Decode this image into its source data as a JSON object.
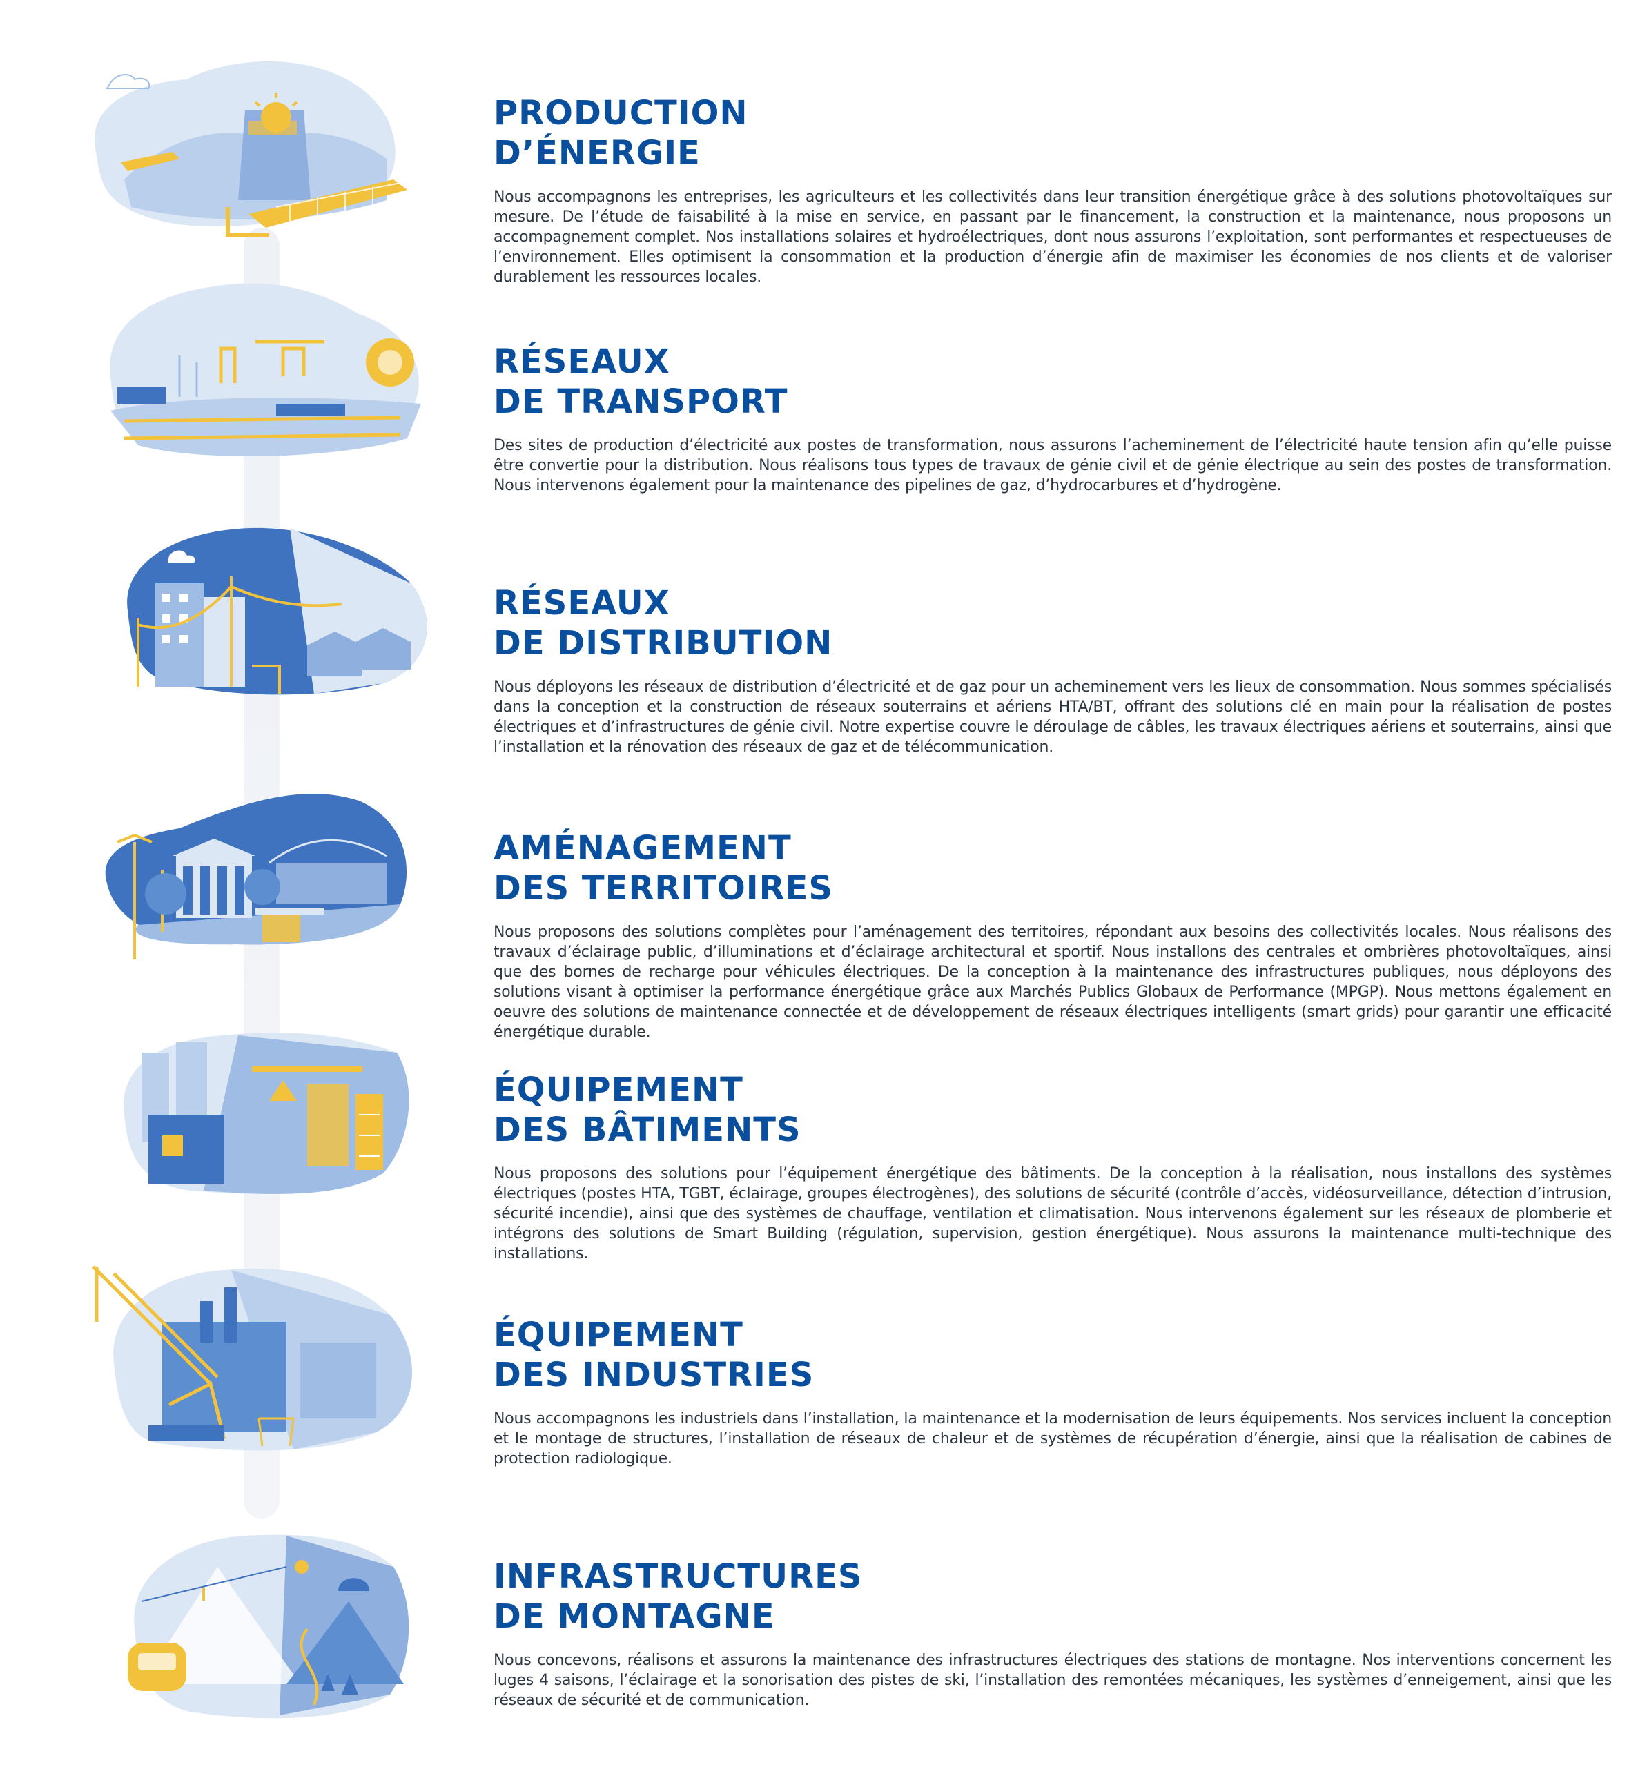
{
  "sections": [
    {
      "title_line1": "PRODUCTION",
      "title_line2": "D’ÉNERGIE",
      "description": "Nous accompagnons les entreprises, les agriculteurs et les collectivités dans leur transition énergétique grâce à des solutions photovoltaïques sur mesure. De l’étude de faisabilité à la mise en service, en passant par le financement, la construction et la maintenance, nous proposons un accompagnement complet. Nos installations solaires et hydroélectriques, dont nous assurons l’exploitation, sont performantes et respectueuses de l’environnement. Elles optimisent la consommation et la production d’énergie afin de maximiser les économies de nos clients et de valoriser durablement les ressources locales.",
      "icon": "solar-hydro-illustration"
    },
    {
      "title_line1": "RÉSEAUX",
      "title_line2": "DE TRANSPORT",
      "description": "Des sites de production d’électricité aux postes de transformation, nous assurons l’acheminement de l’électricité haute tension afin qu’elle puisse être convertie pour la distribution. Nous réalisons tous types de travaux de génie civil et de génie électrique au sein des postes de transformation. Nous intervenons également pour la maintenance des pipelines de gaz, d’hydrocarbures et d’hydrogène.",
      "icon": "transmission-network-illustration"
    },
    {
      "title_line1": "RÉSEAUX",
      "title_line2": "DE DISTRIBUTION",
      "description": "Nous déployons les réseaux de distribution d’électricité et de gaz pour un acheminement vers les lieux de consommation. Nous sommes spécialisés dans la conception et la construction de réseaux souterrains et aériens HTA/BT, offrant des solutions clé en main pour la réalisation de postes électriques et d’infrastructures de génie civil. Notre expertise couvre le déroulage de câbles, les travaux électriques aériens et souterrains, ainsi que l’installation et la rénovation des réseaux de gaz et de télécommunication.",
      "icon": "distribution-network-illustration"
    },
    {
      "title_line1": "AMÉNAGEMENT",
      "title_line2": "DES TERRITOIRES",
      "description": "Nous proposons des solutions complètes pour l’aménagement des territoires, répondant aux besoins des collectivités locales. Nous réalisons des travaux d’éclairage public, d’illuminations et d’éclairage architectural et sportif. Nous installons des centrales et ombrières photovoltaïques, ainsi que des bornes de recharge pour véhicules électriques. De la conception à la maintenance des infrastructures publiques, nous déployons des solutions visant à optimiser la performance énergétique grâce aux Marchés Publics Globaux de Performance (MPGP). Nous mettons également en oeuvre des solutions de maintenance connectée et de développement de réseaux électriques intelligents (smart grids) pour garantir une efficacité énergétique durable.",
      "icon": "city-planning-illustration"
    },
    {
      "title_line1": "ÉQUIPEMENT",
      "title_line2": "DES BÂTIMENTS",
      "description": "Nous proposons des solutions pour l’équipement énergétique des bâtiments. De la conception à la réalisation, nous installons des systèmes électriques (postes HTA, TGBT, éclairage, groupes électrogènes), des solutions de sécurité (contrôle d’accès, vidéosurveillance, détection d’intrusion, sécurité incendie), ainsi que des systèmes de chauffage, ventilation et climatisation. Nous intervenons également sur les réseaux de plomberie et intégrons des solutions de Smart Building (régulation, supervision, gestion énergétique). Nous assurons la maintenance multi-technique des installations.",
      "icon": "building-equipment-illustration"
    },
    {
      "title_line1": "ÉQUIPEMENT",
      "title_line2": "DES INDUSTRIES",
      "description": "Nous accompagnons les industriels dans l’installation, la maintenance et la modernisation de leurs équipements. Nos services incluent la conception et le montage de structures, l’installation de réseaux de chaleur et de systèmes de récupération d’énergie, ainsi que la réalisation de cabines de protection radiologique.",
      "icon": "industry-equipment-illustration"
    },
    {
      "title_line1": "INFRASTRUCTURES",
      "title_line2": "DE MONTAGNE",
      "description": "Nous concevons, réalisons et assurons la maintenance des infrastructures électriques des stations de montagne. Nos interventions concernent les luges 4 saisons, l’éclairage et la sonorisation des pistes de ski, l’installation des remontées mécaniques, les systèmes d’enneigement, ainsi que les réseaux de sécurité et de communication.",
      "icon": "mountain-infrastructure-illustration"
    }
  ],
  "colors": {
    "title": "#0a4f9e",
    "text": "#2c3642",
    "illus_light": "#dce7f5",
    "illus_mid": "#9fbde4",
    "illus_dark": "#3f73bf",
    "accent": "#f2c23c"
  }
}
